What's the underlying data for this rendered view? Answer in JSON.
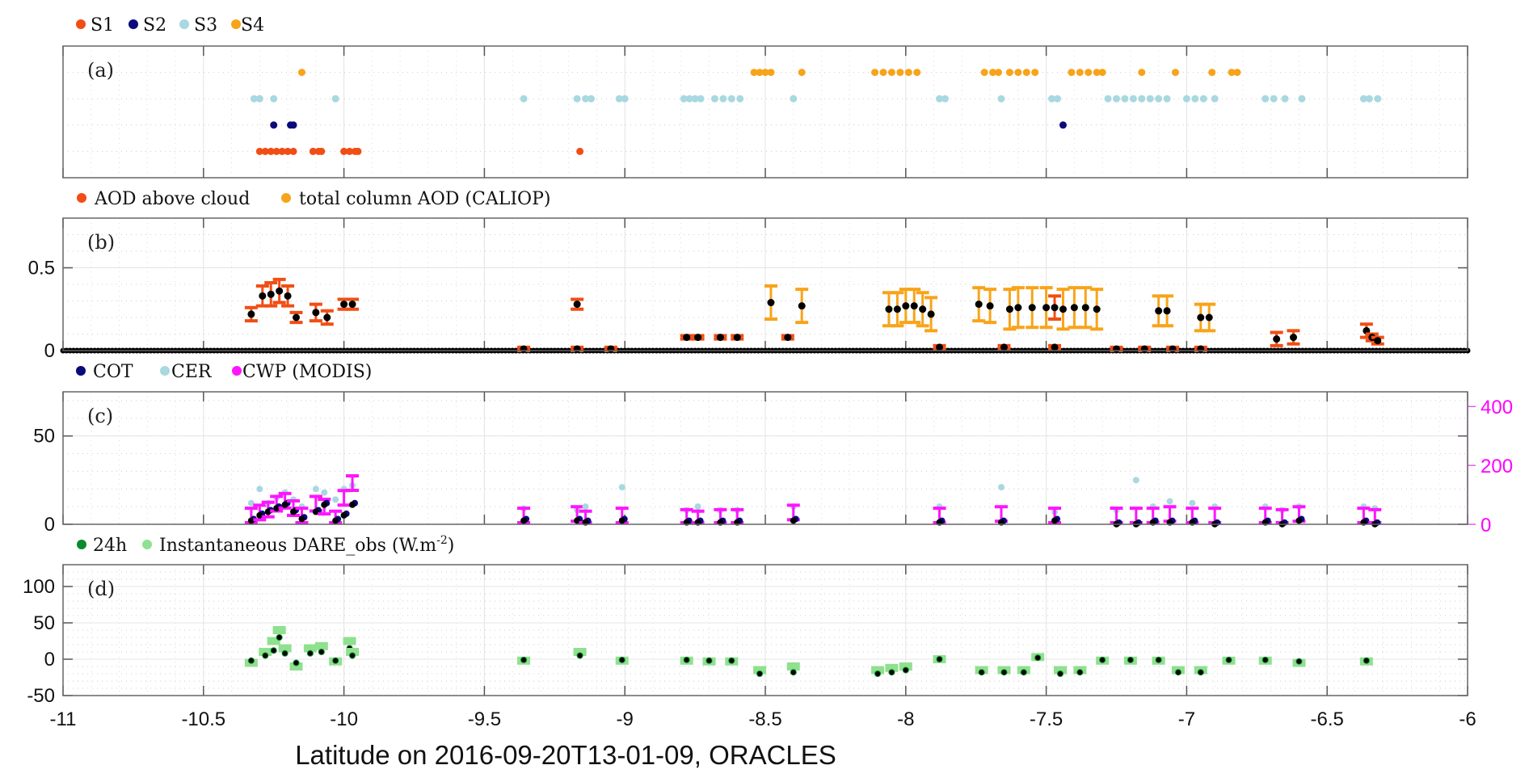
{
  "chart_data": [
    {
      "type": "scatter",
      "panel_label": "(a)",
      "legend": [
        "S1",
        "S2",
        "S3",
        "S4"
      ],
      "colors": {
        "S1": "#f04e14",
        "S2": "#0a0a7a",
        "S3": "#a8d8e0",
        "S4": "#f7a41a"
      },
      "ylim": [
        0,
        5
      ],
      "series": [
        {
          "name": "S1",
          "level": 1,
          "x": [
            -10.3,
            -10.28,
            -10.26,
            -10.24,
            -10.22,
            -10.2,
            -10.18,
            -10.11,
            -10.09,
            -10.08,
            -10.0,
            -9.98,
            -9.96,
            -9.95,
            -9.16
          ]
        },
        {
          "name": "S2",
          "level": 2,
          "x": [
            -10.25,
            -10.19,
            -10.18,
            -7.44
          ]
        },
        {
          "name": "S3",
          "level": 3,
          "x": [
            -10.32,
            -10.3,
            -10.25,
            -10.03,
            -9.36,
            -9.17,
            -9.14,
            -9.12,
            -9.02,
            -9.0,
            -8.79,
            -8.77,
            -8.75,
            -8.73,
            -8.68,
            -8.65,
            -8.62,
            -8.59,
            -8.4,
            -7.88,
            -7.86,
            -7.66,
            -7.48,
            -7.46,
            -7.28,
            -7.25,
            -7.22,
            -7.19,
            -7.16,
            -7.13,
            -7.1,
            -7.07,
            -7.0,
            -6.97,
            -6.94,
            -6.9,
            -6.72,
            -6.69,
            -6.65,
            -6.59,
            -6.37,
            -6.35,
            -6.32
          ]
        },
        {
          "name": "S4",
          "level": 4,
          "x": [
            -10.15,
            -8.54,
            -8.52,
            -8.5,
            -8.48,
            -8.37,
            -8.11,
            -8.08,
            -8.05,
            -8.02,
            -7.99,
            -7.96,
            -7.72,
            -7.69,
            -7.67,
            -7.63,
            -7.6,
            -7.57,
            -7.54,
            -7.41,
            -7.38,
            -7.35,
            -7.32,
            -7.3,
            -7.16,
            -7.04,
            -6.91,
            -6.84,
            -6.82
          ]
        }
      ]
    },
    {
      "type": "scatter",
      "panel_label": "(b)",
      "legend": [
        "AOD above cloud",
        "total column AOD (CALIOP)"
      ],
      "colors": {
        "above": "#f04e14",
        "total": "#f7a41a",
        "points": "#000000"
      },
      "ylim": [
        0,
        0.8
      ],
      "yticks": [
        "0",
        "0.5"
      ],
      "ytick_values": [
        0,
        0.5
      ],
      "zero_baseline": {
        "from": -11,
        "to": -6,
        "step": 0.0125,
        "value": 0,
        "gaps": [
          [
            -10.34,
            -10.33
          ],
          [
            -9.96,
            -9.92
          ]
        ]
      },
      "series": [
        {
          "name": "AOD above cloud",
          "points": [
            [
              -10.33,
              0.22,
              0.04
            ],
            [
              -10.29,
              0.33,
              0.06
            ],
            [
              -10.26,
              0.34,
              0.07
            ],
            [
              -10.23,
              0.36,
              0.07
            ],
            [
              -10.2,
              0.33,
              0.06
            ],
            [
              -10.17,
              0.2,
              0.03
            ],
            [
              -10.1,
              0.23,
              0.05
            ],
            [
              -10.06,
              0.2,
              0.04
            ],
            [
              -10.0,
              0.28,
              0.03
            ],
            [
              -9.97,
              0.28,
              0.03
            ],
            [
              -9.17,
              0.28,
              0.03
            ],
            [
              -9.36,
              0.01,
              0.01
            ],
            [
              -9.17,
              0.01,
              0.01
            ],
            [
              -9.05,
              0.01,
              0.01
            ],
            [
              -8.78,
              0.08,
              0.01
            ],
            [
              -8.74,
              0.08,
              0.01
            ],
            [
              -8.66,
              0.08,
              0.01
            ],
            [
              -8.6,
              0.08,
              0.01
            ],
            [
              -8.42,
              0.08,
              0.01
            ],
            [
              -7.88,
              0.02,
              0.01
            ],
            [
              -7.65,
              0.02,
              0.01
            ],
            [
              -7.47,
              0.26,
              0.07
            ],
            [
              -7.47,
              0.02,
              0.01
            ],
            [
              -7.25,
              0.01,
              0.01
            ],
            [
              -7.15,
              0.01,
              0.01
            ],
            [
              -7.05,
              0.01,
              0.01
            ],
            [
              -6.95,
              0.01,
              0.01
            ],
            [
              -6.68,
              0.07,
              0.04
            ],
            [
              -6.62,
              0.08,
              0.04
            ],
            [
              -6.36,
              0.12,
              0.04
            ],
            [
              -6.34,
              0.08,
              0.02
            ],
            [
              -6.32,
              0.06,
              0.02
            ]
          ]
        },
        {
          "name": "total column AOD (CALIOP)",
          "points": [
            [
              -8.48,
              0.29,
              0.1
            ],
            [
              -8.37,
              0.27,
              0.1
            ],
            [
              -8.06,
              0.25,
              0.1
            ],
            [
              -8.03,
              0.25,
              0.1
            ],
            [
              -8.0,
              0.27,
              0.1
            ],
            [
              -7.97,
              0.27,
              0.1
            ],
            [
              -7.94,
              0.25,
              0.1
            ],
            [
              -7.91,
              0.22,
              0.1
            ],
            [
              -7.74,
              0.28,
              0.1
            ],
            [
              -7.7,
              0.27,
              0.1
            ],
            [
              -7.63,
              0.25,
              0.12
            ],
            [
              -7.6,
              0.26,
              0.12
            ],
            [
              -7.55,
              0.26,
              0.12
            ],
            [
              -7.5,
              0.26,
              0.12
            ],
            [
              -7.44,
              0.25,
              0.12
            ],
            [
              -7.4,
              0.26,
              0.12
            ],
            [
              -7.36,
              0.26,
              0.12
            ],
            [
              -7.32,
              0.25,
              0.12
            ],
            [
              -7.1,
              0.24,
              0.09
            ],
            [
              -7.07,
              0.24,
              0.09
            ],
            [
              -6.95,
              0.2,
              0.08
            ],
            [
              -6.92,
              0.2,
              0.08
            ]
          ]
        }
      ]
    },
    {
      "type": "scatter",
      "panel_label": "(c)",
      "legend": [
        "COT",
        "CER",
        "CWP (MODIS)"
      ],
      "colors": {
        "COT": "#0a0a7a",
        "CER": "#a8d8e0",
        "CWP": "#ff14ff"
      },
      "ylim": [
        0,
        75
      ],
      "yticks": [
        "0",
        "50"
      ],
      "ytick_values": [
        0,
        50
      ],
      "y2lim": [
        0,
        450
      ],
      "y2ticks": [
        "0",
        "200",
        "400"
      ],
      "y2tick_values": [
        0,
        200,
        400
      ],
      "columns": [
        "lat",
        "COT",
        "CER",
        "CWP"
      ],
      "rows": [
        [
          -10.33,
          3,
          12,
          30
        ],
        [
          -10.3,
          6,
          20,
          40
        ],
        [
          -10.27,
          8,
          12,
          50
        ],
        [
          -10.24,
          10,
          15,
          70
        ],
        [
          -10.21,
          12,
          18,
          80
        ],
        [
          -10.18,
          8,
          14,
          55
        ],
        [
          -10.15,
          4,
          10,
          30
        ],
        [
          -10.1,
          8,
          20,
          70
        ],
        [
          -10.07,
          12,
          18,
          60
        ],
        [
          -10.03,
          3,
          14,
          20
        ],
        [
          -10.0,
          6,
          20,
          90
        ],
        [
          -9.97,
          12,
          22,
          140
        ],
        [
          -9.36,
          3,
          9,
          30
        ],
        [
          -9.17,
          3,
          8,
          35
        ],
        [
          -9.14,
          2,
          10,
          20
        ],
        [
          -9.01,
          3,
          21,
          30
        ],
        [
          -8.78,
          2,
          8,
          25
        ],
        [
          -8.74,
          2,
          10,
          20
        ],
        [
          -8.66,
          2,
          8,
          25
        ],
        [
          -8.6,
          2,
          8,
          25
        ],
        [
          -8.4,
          3,
          10,
          40
        ],
        [
          -7.88,
          2,
          10,
          30
        ],
        [
          -7.66,
          2,
          21,
          35
        ],
        [
          -7.47,
          3,
          7,
          30
        ],
        [
          -7.25,
          1,
          8,
          30
        ],
        [
          -7.18,
          1,
          25,
          30
        ],
        [
          -7.12,
          2,
          10,
          30
        ],
        [
          -7.06,
          2,
          13,
          35
        ],
        [
          -6.98,
          2,
          12,
          30
        ],
        [
          -6.9,
          1,
          10,
          30
        ],
        [
          -6.72,
          2,
          10,
          30
        ],
        [
          -6.66,
          1,
          8,
          25
        ],
        [
          -6.6,
          3,
          10,
          35
        ],
        [
          -6.37,
          2,
          10,
          30
        ],
        [
          -6.33,
          1,
          9,
          25
        ]
      ]
    },
    {
      "type": "scatter",
      "panel_label": "(d)",
      "legend": [
        "24h",
        "Instantaneous DARE_obs (W.m",
        "-2",
        ")"
      ],
      "colors": {
        "24h": "#0b8a2a",
        "inst": "#8fe08f"
      },
      "ylim": [
        -50,
        130
      ],
      "yticks": [
        "-50",
        "0",
        "50",
        "100"
      ],
      "ytick_values": [
        -50,
        0,
        50,
        100
      ],
      "columns": [
        "lat",
        "instantaneous",
        "24h"
      ],
      "rows": [
        [
          -10.33,
          -5,
          -2
        ],
        [
          -10.28,
          10,
          5
        ],
        [
          -10.25,
          25,
          12
        ],
        [
          -10.23,
          40,
          30
        ],
        [
          -10.21,
          15,
          8
        ],
        [
          -10.17,
          -10,
          -5
        ],
        [
          -10.12,
          15,
          8
        ],
        [
          -10.08,
          18,
          10
        ],
        [
          -10.03,
          -3,
          -2
        ],
        [
          -9.98,
          25,
          15
        ],
        [
          -9.97,
          10,
          5
        ],
        [
          -9.36,
          -2,
          -1
        ],
        [
          -9.16,
          10,
          5
        ],
        [
          -9.01,
          -2,
          -1
        ],
        [
          -8.78,
          -2,
          -1
        ],
        [
          -8.7,
          -3,
          -2
        ],
        [
          -8.62,
          -3,
          -2
        ],
        [
          -8.52,
          -15,
          -20
        ],
        [
          -8.4,
          -10,
          -18
        ],
        [
          -8.1,
          -15,
          -20
        ],
        [
          -8.05,
          -12,
          -18
        ],
        [
          -8.0,
          -10,
          -15
        ],
        [
          -7.88,
          0,
          0
        ],
        [
          -7.73,
          -15,
          -18
        ],
        [
          -7.65,
          -15,
          -18
        ],
        [
          -7.58,
          -15,
          -18
        ],
        [
          -7.53,
          3,
          2
        ],
        [
          -7.45,
          -15,
          -20
        ],
        [
          -7.38,
          -15,
          -18
        ],
        [
          -7.3,
          -2,
          -1
        ],
        [
          -7.2,
          -2,
          -1
        ],
        [
          -7.1,
          -2,
          -1
        ],
        [
          -7.03,
          -15,
          -18
        ],
        [
          -6.95,
          -15,
          -18
        ],
        [
          -6.85,
          -2,
          -1
        ],
        [
          -6.72,
          -2,
          -1
        ],
        [
          -6.6,
          -5,
          -3
        ],
        [
          -6.36,
          -3,
          -2
        ]
      ]
    }
  ],
  "xaxis": {
    "xlim": [
      -11,
      -6
    ],
    "ticks": [
      "-11",
      "-10.5",
      "-10",
      "-9.5",
      "-9",
      "-8.5",
      "-8",
      "-7.5",
      "-7",
      "-6.5",
      "-6"
    ],
    "tick_values": [
      -11,
      -10.5,
      -10,
      -9.5,
      -9,
      -8.5,
      -8,
      -7.5,
      -7,
      -6.5,
      -6
    ],
    "label": "Latitude on 2016-09-20T13-01-09, ORACLES"
  }
}
